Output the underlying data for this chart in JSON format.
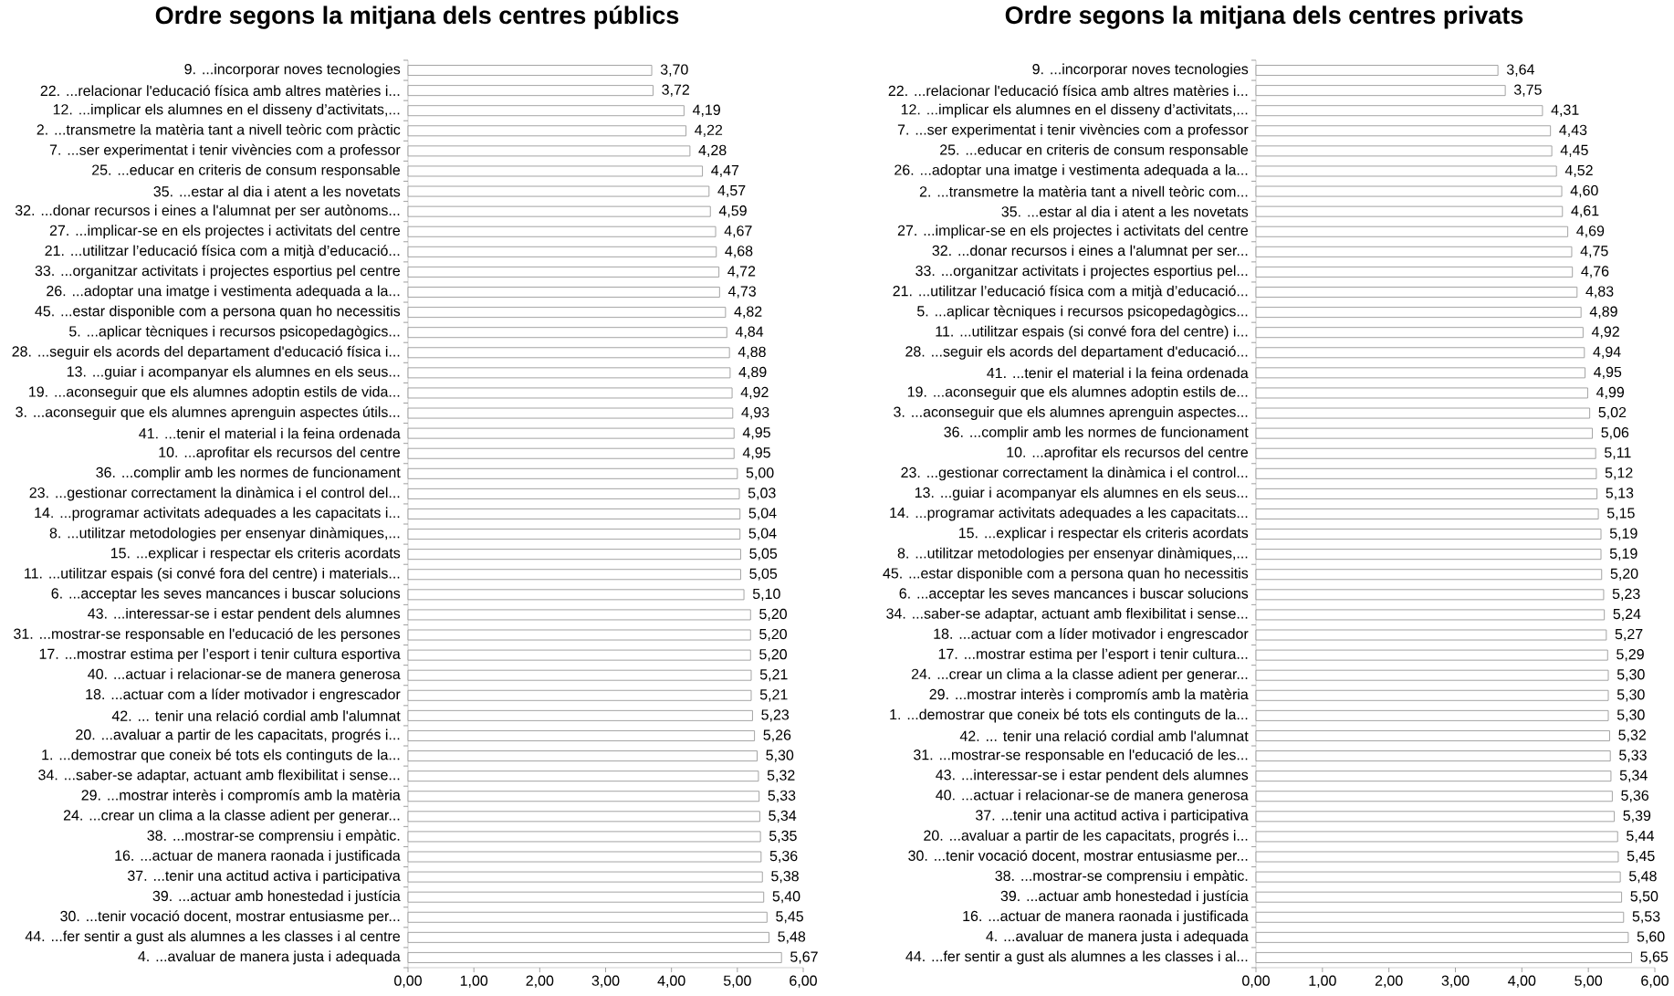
{
  "chart_data": [
    {
      "type": "bar",
      "orientation": "horizontal",
      "title": "Ordre segons la mitjana dels centres públics",
      "categories": [
        "9. ...incorporar noves tecnologies",
        "22. ...relacionar l'educació física amb altres matèries i...",
        "12. ...implicar els alumnes en el disseny d’activitats,...",
        "2. ...transmetre la matèria tant a nivell teòric com pràctic",
        "7. ...ser experimentat i tenir vivències com a professor",
        "25. ...educar en criteris de consum responsable",
        "35. ...estar al dia i atent a les novetats",
        "32. ...donar recursos i eines a l'alumnat per ser autònoms...",
        "27. ...implicar-se en els projectes i activitats del centre",
        "21. ...utilitzar l’educació física com a mitjà d’educació...",
        "33. ...organitzar activitats i projectes esportius pel centre",
        "26. ...adoptar una imatge i vestimenta adequada a la...",
        "45. ...estar disponible com a persona quan ho necessitis",
        "5. ...aplicar tècniques i recursos psicopedagògics...",
        "28. ...seguir els acords del departament d'educació física i...",
        "13. ...guiar i acompanyar els alumnes en els seus...",
        "19. ...aconseguir que els alumnes adoptin estils de vida...",
        "3. ...aconseguir que els alumnes aprenguin aspectes útils...",
        "41. ...tenir el material i la feina ordenada",
        "10. ...aprofitar els recursos del centre",
        "36. ...complir amb les normes de funcionament",
        "23. ...gestionar correctament la dinàmica i el control del...",
        "14. ...programar activitats adequades a les capacitats i...",
        "8. ...utilitzar metodologies per ensenyar dinàmiques,...",
        "15. ...explicar i respectar els criteris acordats",
        "11. ...utilitzar espais (si convé fora del centre) i materials...",
        "6. ...acceptar les seves mancances i buscar solucions",
        "43. ...interessar-se i estar pendent dels alumnes",
        "31. ...mostrar-se responsable en l'educació de les persones",
        "17. ...mostrar estima per l’esport i tenir cultura esportiva",
        "40. ...actuar i relacionar-se de manera generosa",
        "18. ...actuar com a líder motivador i engrescador",
        "42. ... tenir una relació cordial amb l'alumnat",
        "20. ...avaluar a partir de les capacitats, progrés i...",
        "1. ...demostrar que coneix bé tots els continguts de la...",
        "34. ...saber-se adaptar, actuant amb flexibilitat i sense...",
        "29. ...mostrar interès i compromís amb la matèria",
        "24. ...crear un clima a la classe adient per generar...",
        "38. ...mostrar-se comprensiu i empàtic.",
        "16. ...actuar de manera raonada i justificada",
        "37. ...tenir una actitud activa i participativa",
        "39. ...actuar amb honestedad i justícia",
        "30. ...tenir vocació docent, mostrar entusiasme per...",
        "44. ...fer sentir a gust als alumnes a les classes i al centre",
        "4. ...avaluar de manera justa i adequada"
      ],
      "values": [
        3.7,
        3.72,
        4.19,
        4.22,
        4.28,
        4.47,
        4.57,
        4.59,
        4.67,
        4.68,
        4.72,
        4.73,
        4.82,
        4.84,
        4.88,
        4.89,
        4.92,
        4.93,
        4.95,
        4.95,
        5.0,
        5.03,
        5.04,
        5.04,
        5.05,
        5.05,
        5.1,
        5.2,
        5.2,
        5.2,
        5.21,
        5.21,
        5.23,
        5.26,
        5.3,
        5.32,
        5.33,
        5.34,
        5.35,
        5.36,
        5.38,
        5.4,
        5.45,
        5.48,
        5.67
      ],
      "value_labels": [
        "3,70",
        "3,72",
        "4,19",
        "4,22",
        "4,28",
        "4,47",
        "4,57",
        "4,59",
        "4,67",
        "4,68",
        "4,72",
        "4,73",
        "4,82",
        "4,84",
        "4,88",
        "4,89",
        "4,92",
        "4,93",
        "4,95",
        "4,95",
        "5,00",
        "5,03",
        "5,04",
        "5,04",
        "5,05",
        "5,05",
        "5,10",
        "5,20",
        "5,20",
        "5,20",
        "5,21",
        "5,21",
        "5,23",
        "5,26",
        "5,30",
        "5,32",
        "5,33",
        "5,34",
        "5,35",
        "5,36",
        "5,38",
        "5,40",
        "5,45",
        "5,48",
        "5,67"
      ],
      "color": "#ffffff",
      "xlim": [
        0,
        6
      ],
      "xticks": [
        {
          "value": 0,
          "label": "0,00"
        },
        {
          "value": 1,
          "label": "1,00"
        },
        {
          "value": 2,
          "label": "2,00"
        },
        {
          "value": 3,
          "label": "3,00"
        },
        {
          "value": 4,
          "label": "4,00"
        },
        {
          "value": 5,
          "label": "5,00"
        },
        {
          "value": 6,
          "label": "6,00"
        }
      ]
    },
    {
      "type": "bar",
      "orientation": "horizontal",
      "title": "Ordre segons la mitjana dels centres privats",
      "categories": [
        "9. ...incorporar noves tecnologies",
        "22. ...relacionar l'educació física amb altres matèries i...",
        "12. ...implicar els alumnes en el disseny d’activitats,...",
        "7. ...ser experimentat i tenir vivències com a professor",
        "25. ...educar en criteris de consum responsable",
        "26. ...adoptar una imatge i vestimenta adequada a la...",
        "2. ...transmetre la matèria tant a nivell teòric com...",
        "35. ...estar al dia i atent a les novetats",
        "27. ...implicar-se en els projectes i activitats del centre",
        "32. ...donar recursos i eines a l'alumnat per ser...",
        "33. ...organitzar activitats i projectes esportius pel...",
        "21. ...utilitzar l’educació física com a mitjà d’educació...",
        "5. ...aplicar tècniques i recursos psicopedagògics...",
        "11. ...utilitzar espais (si convé fora del centre) i...",
        "28. ...seguir els acords del departament d'educació...",
        "41. ...tenir el material i la feina ordenada",
        "19. ...aconseguir que els alumnes adoptin estils de...",
        "3. ...aconseguir que els alumnes aprenguin aspectes...",
        "36. ...complir amb les normes de funcionament",
        "10. ...aprofitar els recursos del centre",
        "23. ...gestionar correctament la dinàmica i el control...",
        "13. ...guiar i acompanyar els alumnes en els seus...",
        "14. ...programar activitats adequades a les capacitats...",
        "15. ...explicar i respectar els criteris acordats",
        "8. ...utilitzar metodologies per ensenyar dinàmiques,...",
        "45. ...estar disponible com a persona quan ho necessitis",
        "6. ...acceptar les seves mancances i buscar solucions",
        "34. ...saber-se adaptar, actuant amb flexibilitat i sense...",
        "18. ...actuar com a líder motivador i engrescador",
        "17. ...mostrar estima per l’esport i tenir cultura...",
        "24. ...crear un clima a la classe adient per generar...",
        "29. ...mostrar interès i compromís amb la matèria",
        "1. ...demostrar que coneix bé tots els continguts de la...",
        "42. ... tenir una relació cordial amb l'alumnat",
        "31. ...mostrar-se responsable en l'educació de les...",
        "43. ...interessar-se i estar pendent dels alumnes",
        "40. ...actuar i relacionar-se de manera generosa",
        "37. ...tenir una actitud activa i participativa",
        "20. ...avaluar a partir de les capacitats, progrés i...",
        "30. ...tenir vocació docent, mostrar entusiasme per...",
        "38. ...mostrar-se comprensiu i empàtic.",
        "39. ...actuar amb honestedad i justícia",
        "16. ...actuar de manera raonada i justificada",
        "4. ...avaluar de manera justa i adequada",
        "44. ...fer sentir a gust als alumnes a les classes i al..."
      ],
      "values": [
        3.64,
        3.75,
        4.31,
        4.43,
        4.45,
        4.52,
        4.6,
        4.61,
        4.69,
        4.75,
        4.76,
        4.83,
        4.89,
        4.92,
        4.94,
        4.95,
        4.99,
        5.02,
        5.06,
        5.11,
        5.12,
        5.13,
        5.15,
        5.19,
        5.19,
        5.2,
        5.23,
        5.24,
        5.27,
        5.29,
        5.3,
        5.3,
        5.3,
        5.32,
        5.33,
        5.34,
        5.36,
        5.39,
        5.44,
        5.45,
        5.48,
        5.5,
        5.53,
        5.6,
        5.65
      ],
      "value_labels": [
        "3,64",
        "3,75",
        "4,31",
        "4,43",
        "4,45",
        "4,52",
        "4,60",
        "4,61",
        "4,69",
        "4,75",
        "4,76",
        "4,83",
        "4,89",
        "4,92",
        "4,94",
        "4,95",
        "4,99",
        "5,02",
        "5,06",
        "5,11",
        "5,12",
        "5,13",
        "5,15",
        "5,19",
        "5,19",
        "5,20",
        "5,23",
        "5,24",
        "5,27",
        "5,29",
        "5,30",
        "5,30",
        "5,30",
        "5,32",
        "5,33",
        "5,34",
        "5,36",
        "5,39",
        "5,44",
        "5,45",
        "5,48",
        "5,50",
        "5,53",
        "5,60",
        "5,65"
      ],
      "color": "#ffffff",
      "xlim": [
        0,
        6
      ],
      "xticks": [
        {
          "value": 0,
          "label": "0,00"
        },
        {
          "value": 1,
          "label": "1,00"
        },
        {
          "value": 2,
          "label": "2,00"
        },
        {
          "value": 3,
          "label": "3,00"
        },
        {
          "value": 4,
          "label": "4,00"
        },
        {
          "value": 5,
          "label": "5,00"
        },
        {
          "value": 6,
          "label": "6,00"
        }
      ]
    }
  ]
}
